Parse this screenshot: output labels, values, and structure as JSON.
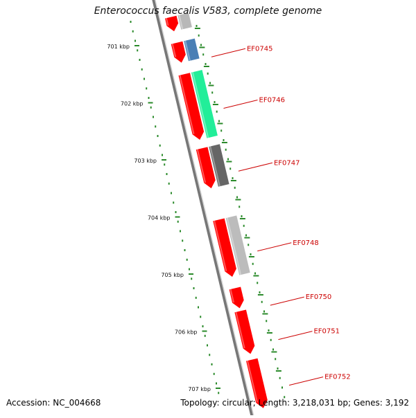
{
  "title": "Enterococcus faecalis V583, complete genome",
  "accession": "Accession: NC_004668",
  "stats": "Topology: circular; Length: 3,218,031 bp; Genes: 3,192",
  "colors": {
    "backbone": "#777777",
    "forward_gene": "#ff0000",
    "tick": "#2a8a2a",
    "label": "#cc0000"
  },
  "scale": {
    "unit": "kbp",
    "ticks": [
      {
        "value": 701,
        "label": "701 kbp"
      },
      {
        "value": 702,
        "label": "702 kbp"
      },
      {
        "value": 703,
        "label": "703 kbp"
      },
      {
        "value": 704,
        "label": "704 kbp"
      },
      {
        "value": 705,
        "label": "705 kbp"
      },
      {
        "value": 706,
        "label": "706 kbp"
      },
      {
        "value": 707,
        "label": "707 kbp"
      }
    ]
  },
  "features": [
    {
      "kind": "cds",
      "start": 700.55,
      "end": 700.8,
      "color": "#ff0000"
    },
    {
      "kind": "cds",
      "start": 701.0,
      "end": 701.35,
      "color": "#ff0000"
    },
    {
      "kind": "cds",
      "start": 701.55,
      "end": 702.7,
      "color": "#ff0000"
    },
    {
      "kind": "cds",
      "start": 702.85,
      "end": 703.55,
      "color": "#ff0000"
    },
    {
      "kind": "cds",
      "start": 704.1,
      "end": 705.1,
      "color": "#ff0000"
    },
    {
      "kind": "cds",
      "start": 705.3,
      "end": 705.65,
      "color": "#ff0000"
    },
    {
      "kind": "cds",
      "start": 705.7,
      "end": 706.45,
      "color": "#ff0000"
    },
    {
      "kind": "cds",
      "start": 706.55,
      "end": 707.4,
      "color": "#ff0000"
    },
    {
      "kind": "other",
      "start": 700.55,
      "end": 700.8,
      "color": "#b8b8b8"
    },
    {
      "kind": "other",
      "start": 701.0,
      "end": 701.35,
      "color": "#4a7fb5"
    },
    {
      "kind": "other",
      "start": 701.55,
      "end": 702.7,
      "color": "#22ee99"
    },
    {
      "kind": "other",
      "start": 702.85,
      "end": 703.55,
      "color": "#666666"
    },
    {
      "kind": "other",
      "start": 704.1,
      "end": 705.1,
      "color": "#bcbcbc"
    }
  ],
  "gene_labels": [
    {
      "name": "EF0745",
      "pos": 701.1
    },
    {
      "name": "EF0746",
      "pos": 702.0
    },
    {
      "name": "EF0747",
      "pos": 703.1
    },
    {
      "name": "EF0748",
      "pos": 704.5
    },
    {
      "name": "EF0750",
      "pos": 705.45
    },
    {
      "name": "EF0751",
      "pos": 706.05
    },
    {
      "name": "EF0752",
      "pos": 706.85
    }
  ]
}
